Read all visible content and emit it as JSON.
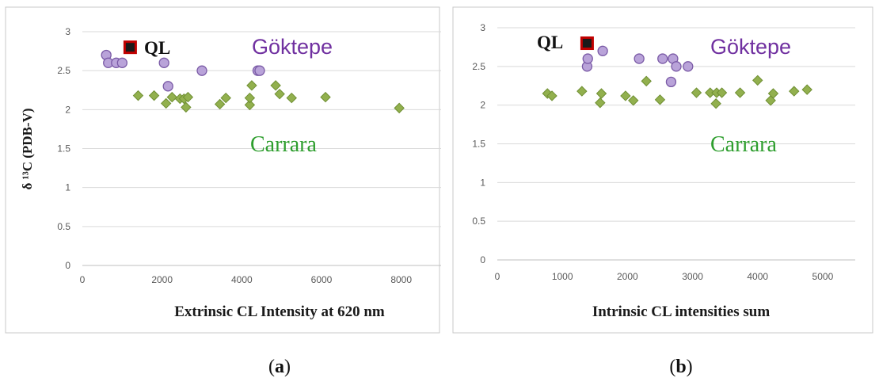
{
  "colors": {
    "goektepe_fill": "#b9a3d9",
    "goektepe_stroke": "#7a5aa6",
    "goektepe_text": "#7030a0",
    "carrara_fill": "#92b04e",
    "carrara_stroke": "#6f8f33",
    "carrara_text": "#2e9e2e",
    "ql_fill": "#1a1a1a",
    "ql_stroke": "#c00000",
    "grid": "#d9d9d9",
    "border": "#c8c8c8"
  },
  "chart_data": [
    {
      "type": "scatter",
      "panel_caption": "a",
      "xlabel": "Extrinsic CL Intensity at 620 nm",
      "ylabel": "δ ¹³C (PDB-V)",
      "xlim": [
        0,
        9000
      ],
      "ylim": [
        0,
        3
      ],
      "x_ticks": [
        "0",
        "2000",
        "4000",
        "6000",
        "8000"
      ],
      "y_ticks": [
        "0",
        "0.5",
        "1",
        "1.5",
        "2",
        "2.5",
        "3"
      ],
      "grid": "horizontal",
      "annotations": {
        "goektepe": "Göktepe",
        "carrara": "Carrara",
        "ql": "QL"
      },
      "series": [
        {
          "name": "Göktepe",
          "marker": "circle",
          "x": [
            600,
            650,
            850,
            1000,
            2050,
            2150,
            3000,
            4400,
            4450
          ],
          "y": [
            2.7,
            2.6,
            2.6,
            2.6,
            2.6,
            2.3,
            2.5,
            2.5,
            2.5
          ]
        },
        {
          "name": "Carrara",
          "marker": "diamond",
          "x": [
            1400,
            1800,
            2100,
            2250,
            2450,
            2550,
            2600,
            2650,
            3450,
            3600,
            4200,
            4200,
            4250,
            4850,
            4950,
            5250,
            6100,
            7950
          ],
          "y": [
            2.18,
            2.18,
            2.08,
            2.16,
            2.14,
            2.14,
            2.03,
            2.16,
            2.07,
            2.15,
            2.06,
            2.15,
            2.31,
            2.31,
            2.2,
            2.15,
            2.16,
            2.02
          ]
        },
        {
          "name": "QL",
          "marker": "square",
          "x": [
            1200
          ],
          "y": [
            2.8
          ]
        }
      ]
    },
    {
      "type": "scatter",
      "panel_caption": "b",
      "xlabel": "Intrinsic CL intensities sum",
      "ylabel": "",
      "xlim": [
        0,
        5500
      ],
      "ylim": [
        0,
        3
      ],
      "x_ticks": [
        "0",
        "1000",
        "2000",
        "3000",
        "4000",
        "5000"
      ],
      "y_ticks": [
        "0",
        "0.5",
        "1",
        "1.5",
        "2",
        "2.5",
        "3"
      ],
      "grid": "horizontal",
      "annotations": {
        "goektepe": "Göktepe",
        "carrara": "Carrara",
        "ql": "QL"
      },
      "series": [
        {
          "name": "Göktepe",
          "marker": "circle",
          "x": [
            1380,
            1390,
            1620,
            2180,
            2540,
            2670,
            2700,
            2750,
            2930
          ],
          "y": [
            2.5,
            2.6,
            2.7,
            2.6,
            2.6,
            2.3,
            2.6,
            2.5,
            2.5
          ]
        },
        {
          "name": "Carrara",
          "marker": "diamond",
          "x": [
            770,
            840,
            1300,
            1580,
            1600,
            1970,
            2090,
            2290,
            2500,
            3060,
            3270,
            3360,
            3370,
            3450,
            3730,
            4000,
            4200,
            4240,
            4560,
            4760
          ],
          "y": [
            2.15,
            2.12,
            2.18,
            2.03,
            2.15,
            2.12,
            2.06,
            2.31,
            2.07,
            2.16,
            2.16,
            2.02,
            2.16,
            2.16,
            2.16,
            2.32,
            2.06,
            2.15,
            2.18,
            2.2
          ]
        },
        {
          "name": "QL",
          "marker": "square",
          "x": [
            1380
          ],
          "y": [
            2.8
          ]
        }
      ]
    }
  ]
}
